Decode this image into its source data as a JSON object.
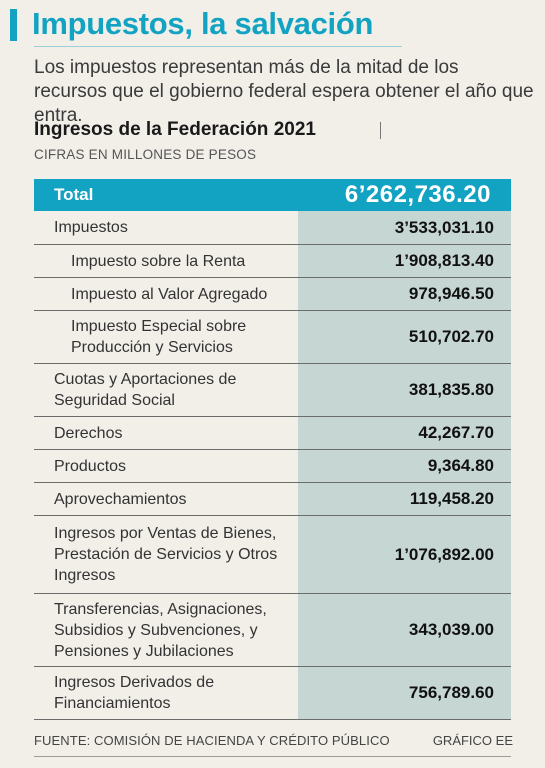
{
  "header": {
    "title": "Impuestos, la salvación",
    "subtitle": "Los impuestos representan más de la mitad de los recursos que el gobierno federal espera obtener el año que entra."
  },
  "table": {
    "title": "Ingresos de la Federación 2021",
    "units": "CIFRAS EN MILLONES DE PESOS",
    "total": {
      "label": "Total",
      "value": "6’262,736.20"
    },
    "rows": [
      {
        "label": "Impuestos",
        "value": "3’533,031.10",
        "indent": false
      },
      {
        "label": "Impuesto sobre la Renta",
        "value": "1’908,813.40",
        "indent": true
      },
      {
        "label": "Impuesto al Valor Agregado",
        "value": "978,946.50",
        "indent": true
      },
      {
        "label": "Impuesto Especial sobre\nProducción y Servicios",
        "value": "510,702.70",
        "indent": true
      },
      {
        "label": "Cuotas y Aportaciones de\nSeguridad Social",
        "value": "381,835.80",
        "indent": false
      },
      {
        "label": "Derechos",
        "value": "42,267.70",
        "indent": false
      },
      {
        "label": "Productos",
        "value": "9,364.80",
        "indent": false
      },
      {
        "label": "Aprovechamientos",
        "value": "119,458.20",
        "indent": false
      },
      {
        "label": "Ingresos por Ventas de Bienes,\nPrestación de Servicios y Otros\nIngresos",
        "value": "1’076,892.00",
        "indent": false
      },
      {
        "label": "Transferencias, Asignaciones,\nSubsidios y Subvenciones, y\nPensiones y Jubilaciones",
        "value": "343,039.00",
        "indent": false
      },
      {
        "label": "Ingresos Derivados de\nFinanciamientos",
        "value": "756,789.60",
        "indent": false
      }
    ]
  },
  "footer": {
    "source": "FUENTE: COMISIÓN DE HACIENDA Y CRÉDITO PÚBLICO",
    "credit": "GRÁFICO EE"
  },
  "colors": {
    "accent": "#13a3c2",
    "value_column": "#c5d6d3",
    "background": "#f2efe9"
  }
}
